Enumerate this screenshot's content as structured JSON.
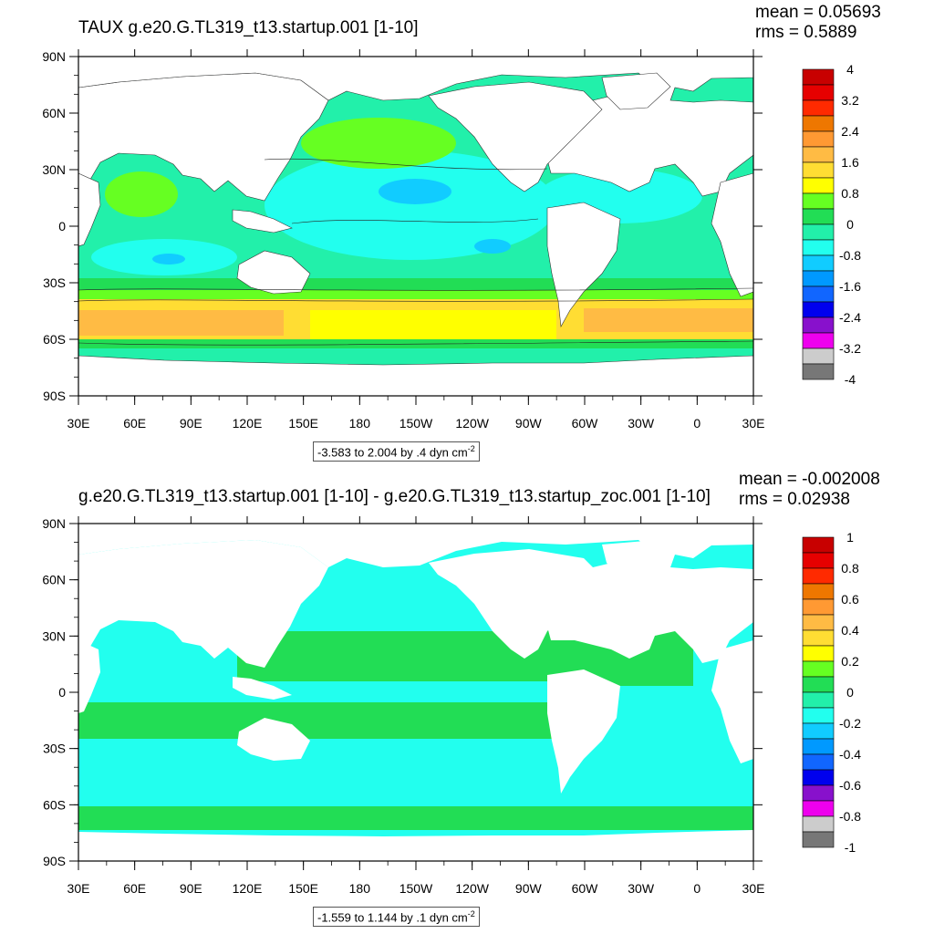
{
  "panels": [
    {
      "title": "TAUX g.e20.G.TL319_t13.startup.001 [1-10]",
      "mean": "mean = 0.05693",
      "rms": "rms = 0.5889",
      "caption": "-3.583 to 2.004 by .4 dyn cm",
      "caption_sup": "-2",
      "colorbar": {
        "labels": [
          "4",
          "3.2",
          "2.4",
          "1.6",
          "0.8",
          "0",
          "-0.8",
          "-1.6",
          "-2.4",
          "-3.2",
          "-4"
        ],
        "colors": [
          "#c80000",
          "#e60000",
          "#ff2a00",
          "#ee7700",
          "#ff9933",
          "#ffbb44",
          "#ffdd33",
          "#ffff00",
          "#66ff22",
          "#22dd55",
          "#22f0aa",
          "#22ffee",
          "#11ccff",
          "#0099ff",
          "#1166ff",
          "#0000ee",
          "#8811cc",
          "#ee00ee",
          "#cccccc",
          "#777777"
        ]
      }
    },
    {
      "title": "g.e20.G.TL319_t13.startup.001 [1-10] - g.e20.G.TL319_t13.startup_zoc.001 [1-10]",
      "mean": "mean = -0.002008",
      "rms": "rms = 0.02938",
      "caption": "-1.559 to 1.144 by .1 dyn cm",
      "caption_sup": "-2",
      "colorbar": {
        "labels": [
          "1",
          "0.8",
          "0.6",
          "0.4",
          "0.2",
          "0",
          "-0.2",
          "-0.4",
          "-0.6",
          "-0.8",
          "-1"
        ],
        "colors": [
          "#c80000",
          "#e60000",
          "#ff2a00",
          "#ee7700",
          "#ff9933",
          "#ffbb44",
          "#ffdd33",
          "#ffff00",
          "#66ff22",
          "#22dd55",
          "#22f0aa",
          "#22ffee",
          "#11ccff",
          "#0099ff",
          "#1166ff",
          "#0000ee",
          "#8811cc",
          "#ee00ee",
          "#cccccc",
          "#777777"
        ]
      }
    }
  ],
  "axes": {
    "lon_labels": [
      "30E",
      "60E",
      "90E",
      "120E",
      "150E",
      "180",
      "150W",
      "120W",
      "90W",
      "60W",
      "30W",
      "0",
      "30E"
    ],
    "lat_labels": [
      "90N",
      "60N",
      "30N",
      "0",
      "30S",
      "60S",
      "90S"
    ]
  },
  "ocean_colors": {
    "ocean_base": "#22f0aa",
    "cyan": "#22ffee",
    "light_blue": "#11ccff",
    "green": "#22dd55",
    "lime": "#66ff22",
    "yellow": "#ffff00",
    "gold": "#ffdd33",
    "orange_light": "#ffbb44",
    "orange": "#ff9933",
    "land": "#ffffff"
  }
}
